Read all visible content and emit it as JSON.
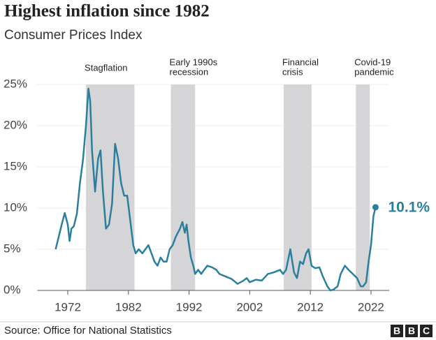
{
  "chart_data": {
    "type": "line",
    "title": "Highest inflation since 1982",
    "subtitle": "Consumer Prices Index",
    "source": "Source: Office for National Statistics",
    "logo": [
      "B",
      "B",
      "C"
    ],
    "xlim": [
      1967,
      2025
    ],
    "xticks": [
      1972,
      1982,
      1992,
      2002,
      2012,
      2022
    ],
    "ylim": [
      0,
      25
    ],
    "yticks": [
      {
        "value": 0,
        "label": "0%"
      },
      {
        "value": 5,
        "label": "5%"
      },
      {
        "value": 10,
        "label": "10%"
      },
      {
        "value": 15,
        "label": "15%"
      },
      {
        "value": 20,
        "label": "20%"
      },
      {
        "value": 25,
        "label": "25%"
      }
    ],
    "grid": true,
    "periods": [
      {
        "label": [
          "Stagflation"
        ],
        "start": 1975,
        "end": 1983
      },
      {
        "label": [
          "Early 1990s",
          "recession"
        ],
        "start": 1989,
        "end": 1993
      },
      {
        "label": [
          "Financial",
          "crisis"
        ],
        "start": 2007.6,
        "end": 2012.2
      },
      {
        "label": [
          "Covid-19",
          "pandemic"
        ],
        "start": 2019.5,
        "end": 2021.8
      }
    ],
    "period_color": "#d5d5d8",
    "x": [
      1970.0,
      1970.5,
      1971.0,
      1971.5,
      1972.0,
      1972.3,
      1972.6,
      1973.0,
      1973.5,
      1974.0,
      1974.5,
      1975.0,
      1975.4,
      1975.7,
      1976.0,
      1976.5,
      1977.0,
      1977.4,
      1977.8,
      1978.3,
      1978.8,
      1979.3,
      1979.8,
      1980.3,
      1980.8,
      1981.3,
      1981.8,
      1982.3,
      1982.8,
      1983.2,
      1983.7,
      1984.3,
      1984.8,
      1985.3,
      1985.8,
      1986.3,
      1986.8,
      1987.3,
      1987.8,
      1988.3,
      1988.8,
      1989.3,
      1989.8,
      1990.5,
      1990.9,
      1991.3,
      1991.6,
      1991.9,
      1992.3,
      1992.7,
      1993.0,
      1993.5,
      1994.0,
      1995.0,
      1995.8,
      1996.5,
      1997.0,
      1998.0,
      1999.0,
      2000.0,
      2000.5,
      2001.0,
      2001.5,
      2002.0,
      2003.0,
      2004.0,
      2005.0,
      2006.0,
      2007.0,
      2007.5,
      2008.0,
      2008.7,
      2009.3,
      2009.8,
      2010.3,
      2010.8,
      2011.3,
      2011.7,
      2012.2,
      2012.8,
      2013.5,
      2014.0,
      2014.8,
      2015.3,
      2015.8,
      2016.5,
      2017.0,
      2017.7,
      2018.3,
      2019.0,
      2019.7,
      2020.3,
      2020.7,
      2021.2,
      2021.6,
      2022.0,
      2022.4,
      2022.75
    ],
    "series": [
      {
        "name": "Consumer Prices Index",
        "color": "#2a7f9e",
        "values": [
          5.0,
          6.5,
          8.0,
          9.4,
          8.0,
          6.0,
          7.5,
          7.8,
          9.3,
          13,
          15.8,
          20,
          24.5,
          23,
          17,
          12,
          16,
          17,
          12,
          7.5,
          8,
          10.5,
          17.8,
          16,
          13,
          11.5,
          11.5,
          8.5,
          5.5,
          4.5,
          5.0,
          4.5,
          5.0,
          5.5,
          4.5,
          3.5,
          3.0,
          4.0,
          3.5,
          3.5,
          5.0,
          5.5,
          6.5,
          7.5,
          8.3,
          7.0,
          8.0,
          6.0,
          4.0,
          3.0,
          2.0,
          2.5,
          2.0,
          3.0,
          2.8,
          2.5,
          2.0,
          1.7,
          1.4,
          0.8,
          1.0,
          1.2,
          1.5,
          1.0,
          1.3,
          1.2,
          2.0,
          2.2,
          2.5,
          2.0,
          2.5,
          5.0,
          2.2,
          1.5,
          3.5,
          3.2,
          4.5,
          5.0,
          3.0,
          2.7,
          2.8,
          1.8,
          0.5,
          0.0,
          0.1,
          0.5,
          2.0,
          3.0,
          2.5,
          2.0,
          1.5,
          0.5,
          0.5,
          1.0,
          3.5,
          5.5,
          9.0,
          10.1
        ]
      }
    ],
    "value_labels": {
      "97": "10.1%"
    }
  }
}
